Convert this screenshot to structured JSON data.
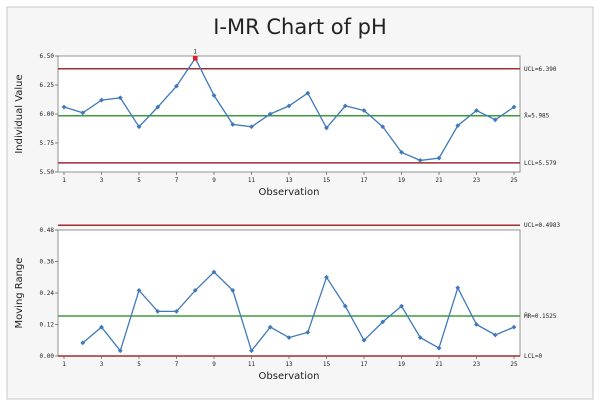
{
  "colors": {
    "series": "#3f79b9",
    "ucl_lcl": "#9e2f33",
    "center": "#3e9a3e",
    "flagged_point": "#e21d24",
    "panel_bg": "#f6f6f6",
    "plot_bg": "#ffffff"
  },
  "chart_data": [
    {
      "type": "line",
      "title": "I-MR Chart of pH",
      "xlabel": "Observation",
      "ylabel": "Individual Value",
      "x": [
        1,
        2,
        3,
        4,
        5,
        6,
        7,
        8,
        9,
        10,
        11,
        12,
        13,
        14,
        15,
        16,
        17,
        18,
        19,
        20,
        21,
        22,
        23,
        24,
        25
      ],
      "x_ticks": [
        "1",
        "3",
        "5",
        "7",
        "9",
        "11",
        "13",
        "15",
        "17",
        "19",
        "21",
        "23",
        "25"
      ],
      "x_tick_values": [
        1,
        3,
        5,
        7,
        9,
        11,
        13,
        15,
        17,
        19,
        21,
        23,
        25
      ],
      "ylim": [
        5.5,
        6.5
      ],
      "y_ticks": [
        "5.50",
        "5.75",
        "6.00",
        "6.25",
        "6.50"
      ],
      "y_tick_values": [
        5.5,
        5.75,
        6.0,
        6.25,
        6.5
      ],
      "series": [
        {
          "values": [
            6.06,
            6.01,
            6.12,
            6.14,
            5.89,
            6.06,
            6.24,
            6.48,
            6.16,
            5.91,
            5.89,
            6.0,
            6.07,
            6.18,
            5.88,
            6.07,
            6.03,
            5.89,
            5.67,
            5.6,
            5.62,
            5.9,
            6.03,
            5.95,
            6.06
          ]
        }
      ],
      "control_lines": {
        "ucl": 6.39,
        "center": 5.985,
        "lcl": 5.579
      },
      "limit_labels": {
        "ucl": "UCL=6.390",
        "center": "X̄=5.985",
        "lcl": "LCL=5.579"
      },
      "flagged": [
        {
          "x": 8,
          "label": "1"
        }
      ],
      "grid": false
    },
    {
      "type": "line",
      "xlabel": "Observation",
      "ylabel": "Moving Range",
      "x": [
        2,
        3,
        4,
        5,
        6,
        7,
        8,
        9,
        10,
        11,
        12,
        13,
        14,
        15,
        16,
        17,
        18,
        19,
        20,
        21,
        22,
        23,
        24,
        25
      ],
      "x_ticks": [
        "1",
        "3",
        "5",
        "7",
        "9",
        "11",
        "13",
        "15",
        "17",
        "19",
        "21",
        "23",
        "25"
      ],
      "x_tick_values": [
        1,
        3,
        5,
        7,
        9,
        11,
        13,
        15,
        17,
        19,
        21,
        23,
        25
      ],
      "ylim": [
        0.0,
        0.48
      ],
      "y_ticks": [
        "0.00",
        "0.12",
        "0.24",
        "0.36",
        "0.48"
      ],
      "y_tick_values": [
        0.0,
        0.12,
        0.24,
        0.36,
        0.48
      ],
      "series": [
        {
          "values": [
            0.05,
            0.11,
            0.02,
            0.25,
            0.17,
            0.17,
            0.25,
            0.32,
            0.25,
            0.02,
            0.11,
            0.07,
            0.09,
            0.3,
            0.19,
            0.06,
            0.13,
            0.19,
            0.07,
            0.03,
            0.26,
            0.12,
            0.08,
            0.11
          ]
        }
      ],
      "control_lines": {
        "ucl": 0.4983,
        "center": 0.1525,
        "lcl": 0.0
      },
      "limit_labels": {
        "ucl": "UCL=0.4983",
        "center": "M̄R=0.1525",
        "lcl": "LCL=0"
      },
      "grid": false
    }
  ]
}
